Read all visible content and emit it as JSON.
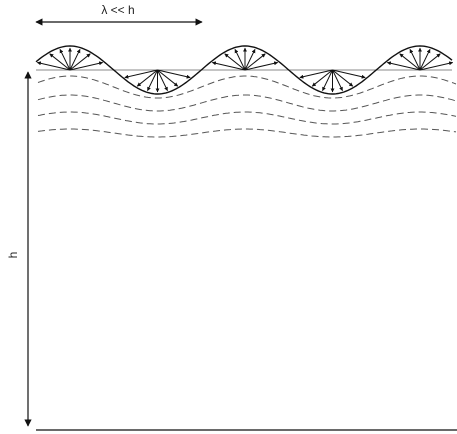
{
  "labels": {
    "wavelength": "λ << h",
    "depth": "h"
  }
}
